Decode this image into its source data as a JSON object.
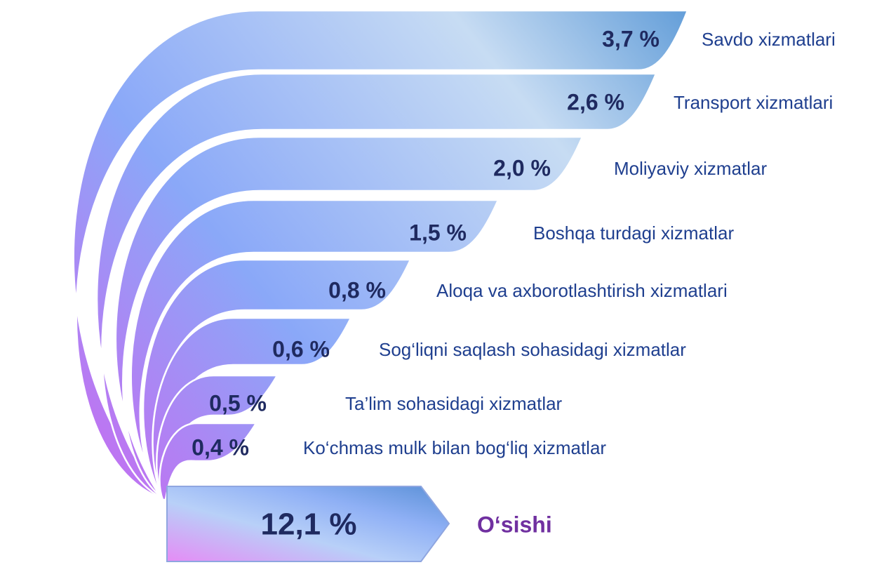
{
  "items": [
    {
      "value": "3,7 %",
      "label": "Savdo xizmatlari"
    },
    {
      "value": "2,6 %",
      "label": "Transport xizmatlari"
    },
    {
      "value": "2,0 %",
      "label": "Moliyaviy xizmatlar"
    },
    {
      "value": "1,5 %",
      "label": "Boshqa turdagi xizmatlar"
    },
    {
      "value": "0,8 %",
      "label": "Aloqa va axborotlashtirish xizmatlari"
    },
    {
      "value": "0,6 %",
      "label": "Sog‘liqni saqlash sohasidagi xizmatlar"
    },
    {
      "value": "0,5 %",
      "label": "Ta’lim sohasidagi xizmatlar"
    },
    {
      "value": "0,4 %",
      "label": "Ko‘chmas mulk bilan bog‘liq xizmatlar"
    }
  ],
  "total": {
    "value": "12,1 %",
    "label": "O‘sishi"
  }
}
